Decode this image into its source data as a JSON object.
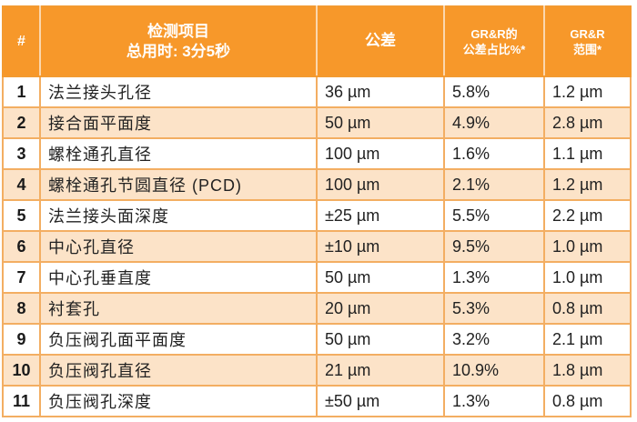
{
  "table": {
    "header": {
      "num": "#",
      "item_line1": "检测项目",
      "item_line2": "总用时: 3分5秒",
      "tolerance": "公差",
      "grr_pct_line1": "GR&R的",
      "grr_pct_line2": "公差占比%*",
      "grr_range_line1": "GR&R",
      "grr_range_line2": "范围*"
    },
    "rows": [
      {
        "num": "1",
        "item": "法兰接头孔径",
        "tolerance": "36 µm",
        "grr_pct": "5.8%",
        "grr_range": "1.2 µm"
      },
      {
        "num": "2",
        "item": "接合面平面度",
        "tolerance": "50 µm",
        "grr_pct": "4.9%",
        "grr_range": "2.8 µm"
      },
      {
        "num": "3",
        "item": "螺栓通孔直径",
        "tolerance": "100 µm",
        "grr_pct": "1.6%",
        "grr_range": "1.1 µm"
      },
      {
        "num": "4",
        "item": "螺栓通孔节圆直径 (PCD)",
        "tolerance": "100 µm",
        "grr_pct": "2.1%",
        "grr_range": "1.2 µm"
      },
      {
        "num": "5",
        "item": "法兰接头面深度",
        "tolerance": "±25 µm",
        "grr_pct": "5.5%",
        "grr_range": "2.2 µm"
      },
      {
        "num": "6",
        "item": "中心孔直径",
        "tolerance": "±10 µm",
        "grr_pct": "9.5%",
        "grr_range": "1.0 µm"
      },
      {
        "num": "7",
        "item": "中心孔垂直度",
        "tolerance": "50 µm",
        "grr_pct": "1.3%",
        "grr_range": "1.0 µm"
      },
      {
        "num": "8",
        "item": "衬套孔",
        "tolerance": "20 µm",
        "grr_pct": "5.3%",
        "grr_range": "0.8 µm"
      },
      {
        "num": "9",
        "item": "负压阀孔面平面度",
        "tolerance": "50 µm",
        "grr_pct": "3.2%",
        "grr_range": "2.1 µm"
      },
      {
        "num": "10",
        "item": "负压阀孔直径",
        "tolerance": "21 µm",
        "grr_pct": "10.9%",
        "grr_range": "1.8 µm"
      },
      {
        "num": "11",
        "item": "负压阀孔深度",
        "tolerance": "±50 µm",
        "grr_pct": "1.3%",
        "grr_range": "0.8 µm"
      }
    ]
  },
  "colors": {
    "header_bg": "#F7982A",
    "alt_row_bg": "#FCE3C8",
    "border": "#F3AE62"
  }
}
